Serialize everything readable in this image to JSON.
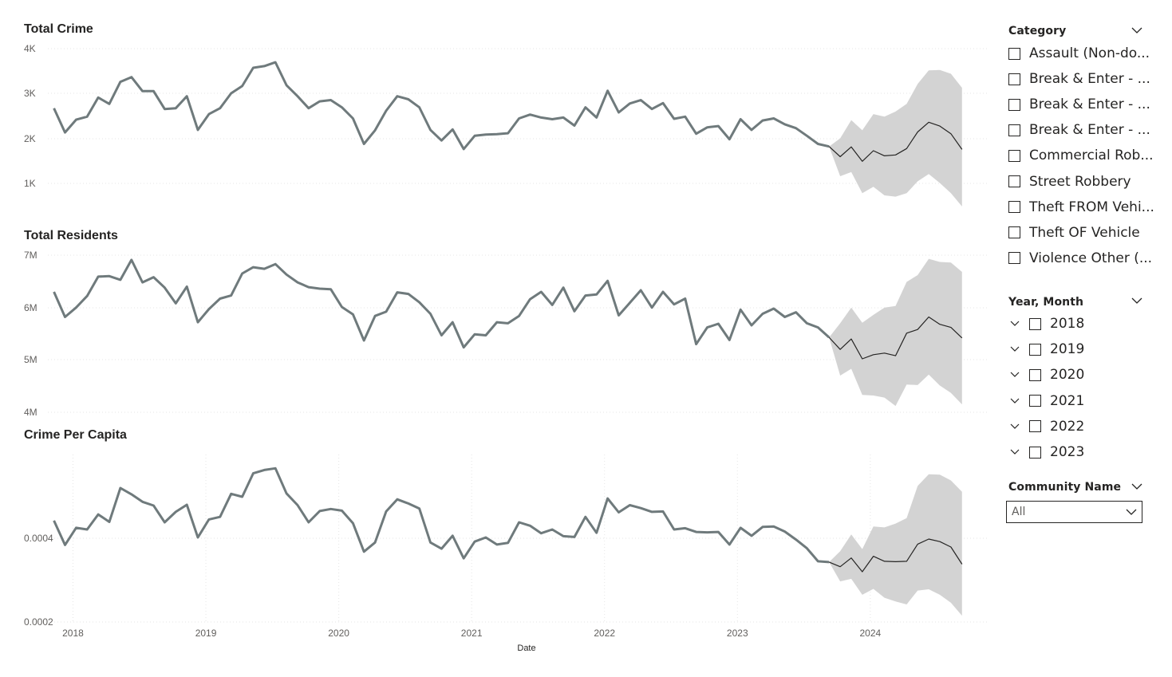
{
  "charts": {
    "date_axis_title": "Date",
    "forecast_start": "2023-11",
    "line_color": "#6f7a7c",
    "forecast_line_color": "#252423",
    "band_color": "#d3d3d3"
  },
  "chart_data": [
    {
      "type": "line",
      "title": "Total Crime",
      "xlabel": "Date",
      "ylabel": "",
      "x_start": "2017-12",
      "x_tick_labels": [
        "2018",
        "2019",
        "2020",
        "2021",
        "2022",
        "2023",
        "2024"
      ],
      "y_tick_labels": [
        "4K",
        "3K",
        "2K",
        "1K"
      ],
      "ylim": [
        0,
        4200
      ],
      "actual": [
        2800,
        2230,
        2530,
        2600,
        3050,
        2900,
        3420,
        3530,
        3200,
        3200,
        2780,
        2800,
        3080,
        2290,
        2660,
        2800,
        3150,
        3320,
        3750,
        3790,
        3880,
        3340,
        3080,
        2800,
        2960,
        2990,
        2820,
        2560,
        1960,
        2280,
        2740,
        3080,
        3010,
        2820,
        2290,
        2040,
        2300,
        1840,
        2150,
        2180,
        2190,
        2210,
        2560,
        2650,
        2580,
        2540,
        2580,
        2390,
        2820,
        2580,
        3210,
        2700,
        2910,
        2990,
        2780,
        2920,
        2550,
        2600,
        2200,
        2350,
        2380,
        2070,
        2540,
        2290,
        2510,
        2560,
        2420,
        2330,
        2150,
        1960,
        1900
      ],
      "forecast": [
        1900,
        1660,
        1890,
        1550,
        1800,
        1680,
        1700,
        1850,
        2240,
        2470,
        2380,
        2200,
        1830
      ],
      "forecast_lower": [
        1900,
        1200,
        1300,
        800,
        950,
        750,
        720,
        800,
        1080,
        1250,
        1040,
        800,
        490
      ],
      "forecast_upper": [
        1900,
        2090,
        2520,
        2280,
        2660,
        2600,
        2720,
        2900,
        3370,
        3690,
        3700,
        3610,
        3280
      ]
    },
    {
      "type": "line",
      "title": "Total Residents",
      "xlabel": "Date",
      "ylabel": "",
      "x_start": "2017-12",
      "x_tick_labels": [
        "2018",
        "2019",
        "2020",
        "2021",
        "2022",
        "2023",
        "2024"
      ],
      "y_tick_labels": [
        "7M",
        "6M",
        "5M",
        "4M"
      ],
      "ylim": [
        4000000,
        7000000
      ],
      "actual": [
        6300000,
        5820000,
        6000000,
        6220000,
        6590000,
        6600000,
        6530000,
        6910000,
        6480000,
        6580000,
        6380000,
        6080000,
        6400000,
        5720000,
        5970000,
        6170000,
        6230000,
        6650000,
        6770000,
        6740000,
        6830000,
        6630000,
        6480000,
        6390000,
        6360000,
        6350000,
        6010000,
        5870000,
        5370000,
        5840000,
        5920000,
        6290000,
        6260000,
        6100000,
        5880000,
        5470000,
        5720000,
        5240000,
        5490000,
        5470000,
        5720000,
        5700000,
        5840000,
        6160000,
        6300000,
        6050000,
        6380000,
        5930000,
        6230000,
        6250000,
        6510000,
        5850000,
        6090000,
        6330000,
        6000000,
        6300000,
        6060000,
        6170000,
        5300000,
        5620000,
        5690000,
        5380000,
        5960000,
        5660000,
        5880000,
        5980000,
        5820000,
        5910000,
        5700000,
        5620000,
        5430000
      ],
      "forecast": [
        5430000,
        5200000,
        5400000,
        5020000,
        5100000,
        5130000,
        5080000,
        5510000,
        5580000,
        5820000,
        5680000,
        5620000,
        5420000
      ],
      "forecast_lower": [
        5430000,
        4700000,
        4830000,
        4330000,
        4320000,
        4280000,
        4120000,
        4530000,
        4520000,
        4720000,
        4510000,
        4370000,
        4150000
      ],
      "forecast_upper": [
        5430000,
        5700000,
        6000000,
        5710000,
        5860000,
        6000000,
        6030000,
        6490000,
        6620000,
        6930000,
        6870000,
        6860000,
        6680000
      ]
    },
    {
      "type": "line",
      "title": "Crime Per Capita",
      "xlabel": "Date",
      "ylabel": "",
      "x_start": "2017-12",
      "x_tick_labels": [
        "2018",
        "2019",
        "2020",
        "2021",
        "2022",
        "2023",
        "2024"
      ],
      "y_tick_labels": [
        "0.0004",
        "0.0002"
      ],
      "ylim": [
        0.0002,
        0.0006
      ],
      "actual": [
        0.000442,
        0.000384,
        0.000425,
        0.000421,
        0.000457,
        0.000439,
        0.00052,
        0.000505,
        0.000487,
        0.000478,
        0.000438,
        0.000463,
        0.00048,
        0.000402,
        0.000445,
        0.000451,
        0.000506,
        0.000499,
        0.000555,
        0.000563,
        0.000567,
        0.000507,
        0.000479,
        0.000438,
        0.000465,
        0.00047,
        0.000466,
        0.000436,
        0.000368,
        0.00039,
        0.000464,
        0.000493,
        0.000483,
        0.000471,
        0.00039,
        0.000375,
        0.000406,
        0.000352,
        0.000392,
        0.000402,
        0.000385,
        0.000389,
        0.000438,
        0.00043,
        0.000412,
        0.000421,
        0.000405,
        0.000403,
        0.000451,
        0.000413,
        0.000495,
        0.000462,
        0.000479,
        0.000472,
        0.000463,
        0.000464,
        0.000421,
        0.000424,
        0.000415,
        0.000414,
        0.000415,
        0.000385,
        0.000425,
        0.000406,
        0.000427,
        0.000428,
        0.000416,
        0.000397,
        0.000376,
        0.000345,
        0.000343
      ],
      "forecast": [
        0.000343,
        0.000332,
        0.000353,
        0.00032,
        0.000357,
        0.000345,
        0.000344,
        0.000345,
        0.000386,
        0.000398,
        0.000392,
        0.000379,
        0.000338
      ],
      "forecast_lower": [
        0.000343,
        0.000297,
        0.000303,
        0.000265,
        0.000279,
        0.000258,
        0.000249,
        0.000242,
        0.000275,
        0.000278,
        0.000265,
        0.000246,
        0.000215
      ],
      "forecast_upper": [
        0.000343,
        0.000369,
        0.000409,
        0.000374,
        0.000428,
        0.000426,
        0.000435,
        0.000448,
        0.000525,
        0.000553,
        0.000552,
        0.000538,
        0.000511
      ]
    }
  ],
  "slicers": {
    "category": {
      "title": "Category",
      "items": [
        "Assault (Non-do...",
        "Break & Enter - ...",
        "Break & Enter - ...",
        "Break & Enter - ...",
        "Commercial Rob...",
        "Street Robbery",
        "Theft FROM Vehi...",
        "Theft OF Vehicle",
        "Violence Other (..."
      ]
    },
    "year_month": {
      "title": "Year, Month",
      "items": [
        "2018",
        "2019",
        "2020",
        "2021",
        "2022",
        "2023"
      ]
    },
    "community": {
      "title": "Community Name",
      "selected": "All"
    }
  }
}
